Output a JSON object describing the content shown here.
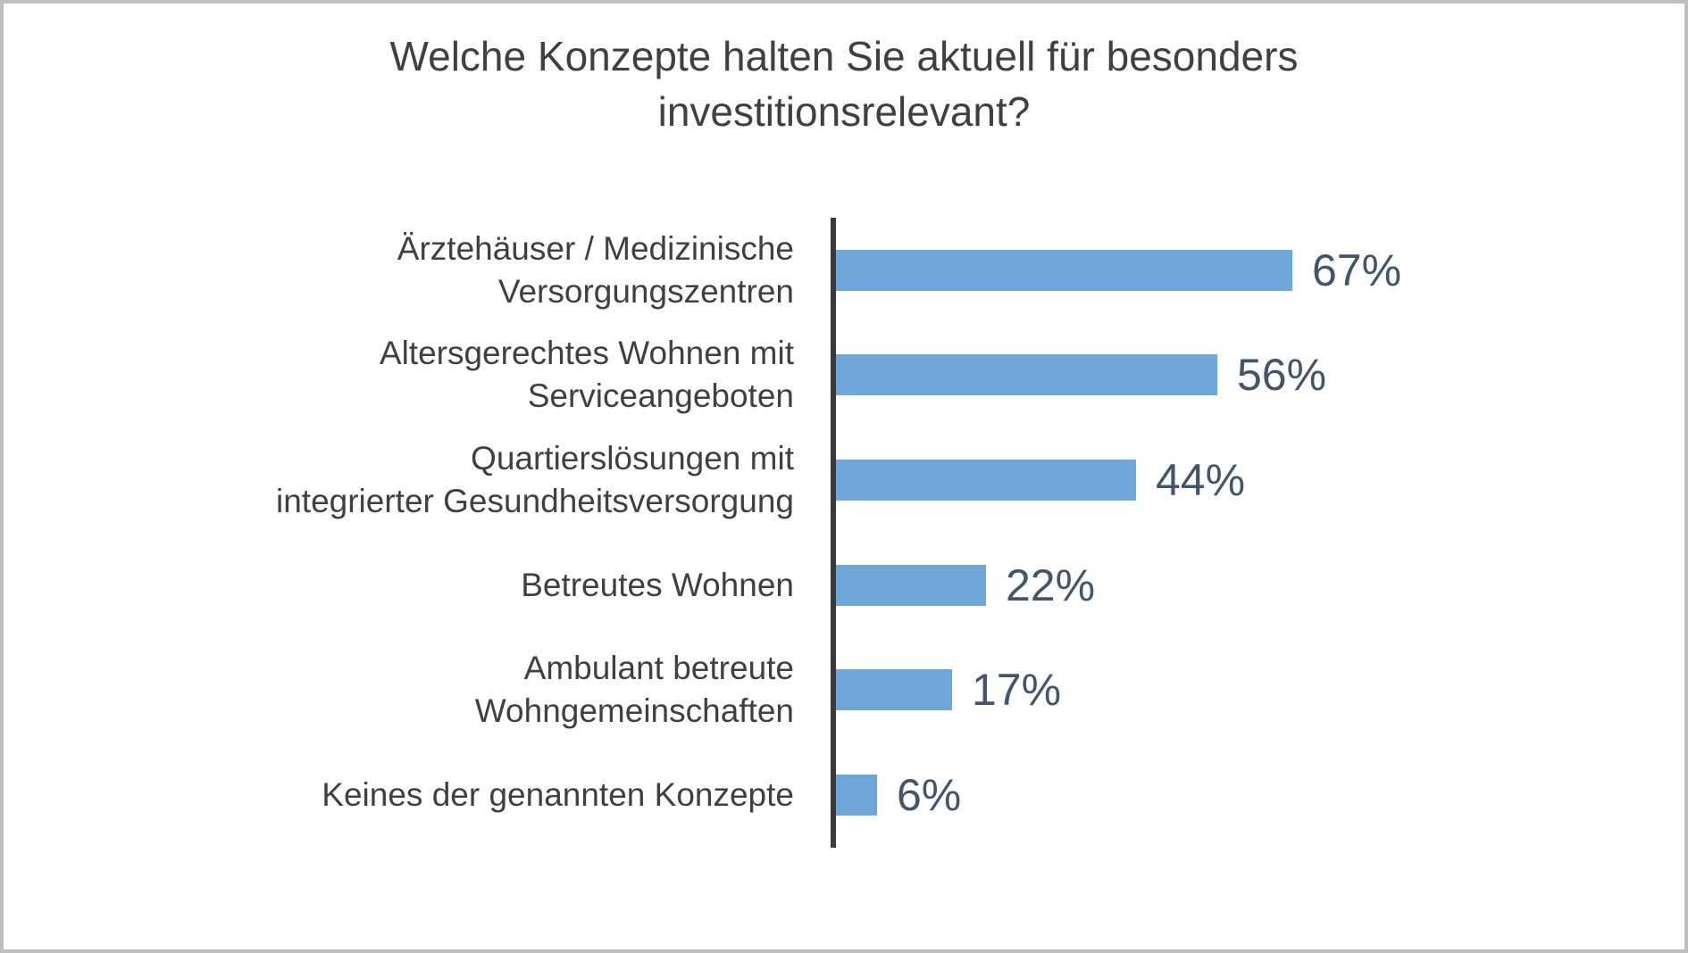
{
  "title": {
    "line1": "Welche Konzepte halten Sie aktuell für besonders",
    "line2": "investitionsrelevant?"
  },
  "chart_data": {
    "type": "bar",
    "orientation": "horizontal",
    "title": "Welche Konzepte halten Sie aktuell für besonders investitionsrelevant?",
    "categories": [
      "Ärztehäuser / Medizinische Versorgungszentren",
      "Altersgerechtes Wohnen mit Serviceangeboten",
      "Quartierslösungen mit integrierter Gesundheitsversorgung",
      "Betreutes Wohnen",
      "Ambulant betreute Wohngemeinschaften",
      "Keines der genannten Konzepte"
    ],
    "category_lines": [
      [
        "Ärztehäuser / Medizinische",
        "Versorgungszentren"
      ],
      [
        "Altersgerechtes Wohnen mit",
        "Serviceangeboten"
      ],
      [
        "Quartierslösungen mit",
        "integrierter Gesundheitsversorgung"
      ],
      [
        "Betreutes Wohnen"
      ],
      [
        "Ambulant betreute",
        "Wohngemeinschaften"
      ],
      [
        "Keines der genannten Konzepte"
      ]
    ],
    "values": [
      67,
      56,
      44,
      22,
      17,
      6
    ],
    "value_labels": [
      "67%",
      "56%",
      "44%",
      "22%",
      "17%",
      "6%"
    ],
    "xlabel": "",
    "ylabel": "",
    "xlim": [
      0,
      100
    ],
    "grid": false,
    "legend": false,
    "bar_color": "#6FA7DB",
    "value_label_color": "#44546A",
    "axis_color": "#3B3B3B",
    "text_color": "#404040"
  }
}
